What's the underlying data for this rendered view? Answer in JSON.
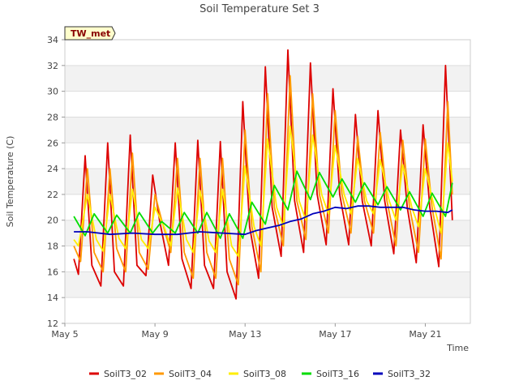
{
  "chart_data": {
    "type": "line",
    "title": "Soil Temperature Set 3",
    "xlabel": "Time",
    "ylabel": "Soil Temperature (C)",
    "site_label": "TW_met",
    "ylim": [
      12,
      34
    ],
    "yticks": [
      12,
      14,
      16,
      18,
      20,
      22,
      24,
      26,
      28,
      30,
      32,
      34
    ],
    "xlim": [
      5.0,
      23.0
    ],
    "xticks": [
      {
        "value": 5,
        "label": "May 5"
      },
      {
        "value": 9,
        "label": "May 9"
      },
      {
        "value": 13,
        "label": "May 13"
      },
      {
        "value": 17,
        "label": "May 17"
      },
      {
        "value": 21,
        "label": "May 21"
      }
    ],
    "grid": "horizontal bands",
    "legend_position": "bottom",
    "series": [
      {
        "name": "SoilT3_02",
        "color": "#dd0000",
        "x": [
          5.4,
          5.6,
          5.9,
          6.2,
          6.6,
          6.9,
          7.2,
          7.6,
          7.9,
          8.2,
          8.6,
          8.9,
          9.2,
          9.6,
          9.9,
          10.2,
          10.6,
          10.9,
          11.2,
          11.6,
          11.9,
          12.2,
          12.6,
          12.9,
          13.2,
          13.6,
          13.9,
          14.2,
          14.6,
          14.9,
          15.2,
          15.6,
          15.9,
          16.2,
          16.6,
          16.9,
          17.2,
          17.6,
          17.9,
          18.2,
          18.6,
          18.9,
          19.2,
          19.6,
          19.9,
          20.2,
          20.6,
          20.9,
          21.2,
          21.6,
          21.9,
          22.2
        ],
        "y": [
          17.0,
          15.8,
          25.0,
          16.5,
          14.9,
          26.0,
          16.0,
          14.9,
          26.6,
          16.5,
          15.7,
          23.5,
          20.0,
          16.5,
          26.0,
          17.0,
          14.7,
          26.2,
          16.5,
          14.7,
          26.1,
          16.0,
          13.9,
          29.2,
          19.5,
          15.5,
          31.9,
          21.0,
          17.2,
          33.2,
          21.5,
          17.5,
          32.2,
          22.0,
          18.1,
          30.2,
          22.0,
          18.1,
          28.2,
          21.5,
          18.0,
          28.5,
          21.5,
          17.4,
          27.0,
          21.0,
          16.7,
          27.4,
          21.0,
          16.4,
          32.0,
          20.0
        ]
      },
      {
        "name": "SoilT3_04",
        "color": "#ff9900",
        "x": [
          5.4,
          5.7,
          6.0,
          6.3,
          6.7,
          7.0,
          7.3,
          7.7,
          8.0,
          8.3,
          8.7,
          9.0,
          9.3,
          9.7,
          10.0,
          10.3,
          10.7,
          11.0,
          11.3,
          11.7,
          12.0,
          12.3,
          12.7,
          13.0,
          13.3,
          13.7,
          14.0,
          14.3,
          14.7,
          15.0,
          15.3,
          15.7,
          16.0,
          16.3,
          16.7,
          17.0,
          17.3,
          17.7,
          18.0,
          18.3,
          18.7,
          19.0,
          19.3,
          19.7,
          20.0,
          20.3,
          20.7,
          21.0,
          21.3,
          21.7,
          22.0,
          22.2
        ],
        "y": [
          18.0,
          16.8,
          24.0,
          17.5,
          16.0,
          24.0,
          17.8,
          16.0,
          25.2,
          17.5,
          16.2,
          22.0,
          20.0,
          17.5,
          24.8,
          17.5,
          15.5,
          24.8,
          17.5,
          15.5,
          24.8,
          17.0,
          15.0,
          27.0,
          19.5,
          16.0,
          29.8,
          21.0,
          18.0,
          31.2,
          21.5,
          18.5,
          29.8,
          22.0,
          19.0,
          28.5,
          22.0,
          19.0,
          26.5,
          21.5,
          19.0,
          26.8,
          21.5,
          18.0,
          26.2,
          21.0,
          17.5,
          26.3,
          21.0,
          17.0,
          29.2,
          22.0
        ]
      },
      {
        "name": "SoilT3_08",
        "color": "#ffee00",
        "x": [
          5.4,
          5.6,
          6.0,
          6.4,
          6.7,
          7.0,
          7.4,
          7.7,
          8.0,
          8.4,
          8.7,
          9.0,
          9.4,
          9.7,
          10.0,
          10.4,
          10.7,
          11.0,
          11.4,
          11.7,
          12.0,
          12.4,
          12.7,
          13.0,
          13.4,
          13.7,
          14.0,
          14.4,
          14.7,
          15.0,
          15.4,
          15.7,
          16.0,
          16.4,
          16.7,
          17.0,
          17.4,
          17.7,
          18.0,
          18.4,
          18.7,
          19.0,
          19.4,
          19.7,
          20.0,
          20.4,
          20.7,
          21.0,
          21.4,
          21.7,
          22.0,
          22.2
        ],
        "y": [
          18.5,
          18.0,
          22.0,
          18.5,
          17.6,
          22.0,
          18.6,
          17.8,
          22.4,
          18.5,
          17.8,
          21.0,
          19.5,
          18.0,
          22.5,
          18.5,
          17.5,
          22.3,
          18.4,
          17.5,
          22.4,
          18.0,
          17.2,
          24.2,
          19.5,
          18.0,
          26.3,
          21.0,
          19.5,
          27.3,
          21.5,
          20.0,
          26.6,
          22.0,
          20.5,
          25.8,
          22.0,
          20.5,
          24.8,
          21.5,
          20.5,
          24.7,
          21.5,
          20.0,
          24.3,
          21.0,
          19.5,
          24.0,
          21.0,
          19.0,
          26.0,
          23.0
        ]
      },
      {
        "name": "SoilT3_16",
        "color": "#00dd00",
        "x": [
          5.4,
          5.9,
          6.3,
          6.9,
          7.3,
          7.9,
          8.3,
          8.9,
          9.3,
          9.9,
          10.3,
          10.9,
          11.3,
          11.9,
          12.3,
          12.9,
          13.3,
          13.9,
          14.3,
          14.9,
          15.3,
          15.9,
          16.3,
          16.9,
          17.3,
          17.9,
          18.3,
          18.9,
          19.3,
          19.9,
          20.3,
          20.9,
          21.3,
          21.9,
          22.2
        ],
        "y": [
          20.3,
          18.8,
          20.5,
          19.0,
          20.4,
          19.0,
          20.6,
          19.0,
          19.9,
          19.0,
          20.6,
          19.0,
          20.6,
          18.6,
          20.5,
          18.6,
          21.4,
          19.7,
          22.7,
          20.8,
          23.8,
          21.6,
          23.7,
          21.8,
          23.2,
          21.4,
          22.9,
          21.2,
          22.6,
          20.8,
          22.2,
          20.3,
          22.1,
          20.3,
          22.9
        ]
      },
      {
        "name": "SoilT3_32",
        "color": "#0000bb",
        "x": [
          5.4,
          6.0,
          7.0,
          8.0,
          9.0,
          10.0,
          11.0,
          12.0,
          13.0,
          13.5,
          14.0,
          14.5,
          15.0,
          15.5,
          16.0,
          16.5,
          17.0,
          17.5,
          18.0,
          18.5,
          19.0,
          19.5,
          20.0,
          20.5,
          21.0,
          21.5,
          22.0,
          22.2
        ],
        "y": [
          19.1,
          19.1,
          18.9,
          19.0,
          18.9,
          18.9,
          19.1,
          19.0,
          18.9,
          19.2,
          19.4,
          19.6,
          19.9,
          20.1,
          20.5,
          20.7,
          21.0,
          20.9,
          21.1,
          21.1,
          21.0,
          21.0,
          21.0,
          20.8,
          20.7,
          20.7,
          20.6,
          20.8
        ]
      }
    ]
  }
}
